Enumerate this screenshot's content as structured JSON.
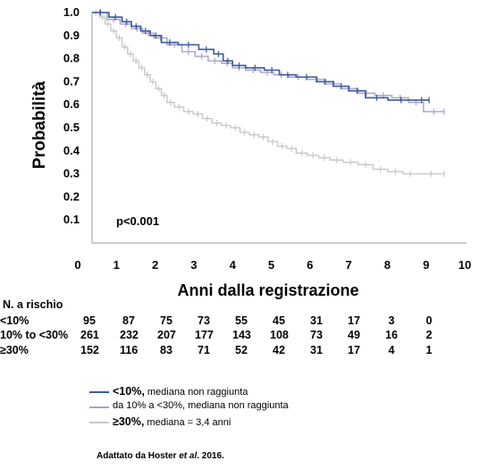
{
  "chart_data": {
    "type": "line",
    "subtype": "kaplan-meier",
    "xlabel": "Anni dalla registrazione",
    "ylabel": "Probabilità",
    "xlim": [
      0,
      10
    ],
    "ylim": [
      0,
      1
    ],
    "xticks": [
      "0",
      "1",
      "2",
      "3",
      "4",
      "5",
      "6",
      "7",
      "8",
      "9",
      "10"
    ],
    "yticks": [
      "0.1",
      "0.2",
      "0.3",
      "0.4",
      "0.5",
      "0.6",
      "0.7",
      "0.8",
      "0.9",
      "1.0"
    ],
    "annotation": "p<0.001",
    "series": [
      {
        "name": "<10%",
        "color": "#3a5a9a",
        "x": [
          0,
          0.45,
          0.8,
          1.05,
          1.3,
          1.55,
          1.85,
          2.3,
          2.85,
          3.25,
          3.5,
          3.75,
          4.1,
          4.6,
          5.0,
          5.45,
          6.0,
          6.45,
          6.85,
          7.3,
          7.9,
          8.6,
          9.0
        ],
        "y": [
          1.0,
          0.98,
          0.96,
          0.94,
          0.92,
          0.9,
          0.87,
          0.86,
          0.84,
          0.82,
          0.79,
          0.77,
          0.76,
          0.75,
          0.73,
          0.72,
          0.7,
          0.68,
          0.66,
          0.63,
          0.62,
          0.62,
          0.62
        ]
      },
      {
        "name": "da 10% a <30%",
        "color": "#a9a2cc",
        "x": [
          0,
          0.4,
          0.75,
          1.05,
          1.35,
          1.65,
          2.0,
          2.4,
          2.75,
          3.1,
          3.45,
          3.75,
          4.1,
          4.5,
          4.85,
          5.25,
          5.75,
          6.2,
          6.65,
          7.1,
          7.55,
          8.0,
          8.45,
          8.85,
          9.4
        ],
        "y": [
          1.0,
          0.97,
          0.95,
          0.93,
          0.91,
          0.89,
          0.86,
          0.83,
          0.81,
          0.79,
          0.78,
          0.76,
          0.75,
          0.74,
          0.73,
          0.72,
          0.71,
          0.69,
          0.67,
          0.65,
          0.64,
          0.63,
          0.61,
          0.57,
          0.57
        ]
      },
      {
        "name": "≥30%",
        "color": "#c8c8c8",
        "x": [
          0,
          0.2,
          0.35,
          0.5,
          0.65,
          0.8,
          0.95,
          1.1,
          1.25,
          1.4,
          1.55,
          1.7,
          1.85,
          2.0,
          2.2,
          2.45,
          2.7,
          2.95,
          3.2,
          3.45,
          3.7,
          3.95,
          4.2,
          4.45,
          4.7,
          4.95,
          5.2,
          5.45,
          5.75,
          6.05,
          6.35,
          6.7,
          7.1,
          7.5,
          7.9,
          8.3,
          8.7,
          9.4
        ],
        "y": [
          1.0,
          0.98,
          0.95,
          0.92,
          0.89,
          0.85,
          0.82,
          0.79,
          0.76,
          0.73,
          0.7,
          0.67,
          0.64,
          0.61,
          0.59,
          0.57,
          0.56,
          0.54,
          0.52,
          0.51,
          0.5,
          0.48,
          0.47,
          0.46,
          0.44,
          0.42,
          0.41,
          0.39,
          0.38,
          0.37,
          0.36,
          0.35,
          0.34,
          0.32,
          0.31,
          0.3,
          0.3,
          0.3
        ]
      }
    ]
  },
  "risk_table": {
    "title": "N. a rischio",
    "rows": [
      {
        "label": "<10%",
        "values": [
          "95",
          "87",
          "75",
          "73",
          "55",
          "45",
          "31",
          "17",
          "3",
          "0"
        ]
      },
      {
        "label": "10% to <30%",
        "values": [
          "261",
          "232",
          "207",
          "177",
          "143",
          "108",
          "73",
          "49",
          "16",
          "2"
        ]
      },
      {
        "label": "≥30%",
        "values": [
          "152",
          "116",
          "83",
          "71",
          "52",
          "42",
          "31",
          "17",
          "4",
          "1"
        ]
      }
    ]
  },
  "legend": [
    {
      "prefix": "<10%,",
      "text": "mediana non raggiunta",
      "color": "#3a5a9a"
    },
    {
      "prefix": "",
      "text": "da 10% a <30%, mediana non raggiunta",
      "color": "#a9a2cc"
    },
    {
      "prefix": "≥30%,",
      "text": "mediana  = 3,4 anni",
      "color": "#c8c8c8"
    }
  ],
  "source": {
    "before": "Adattato da Hoster ",
    "italic": "et al",
    "after": ". 2016."
  }
}
